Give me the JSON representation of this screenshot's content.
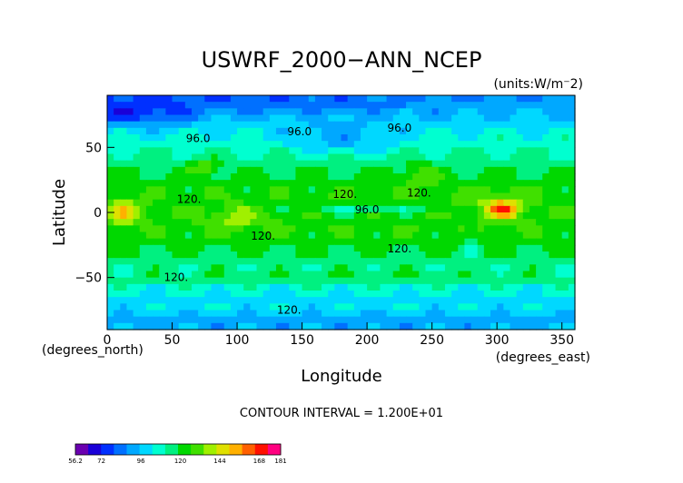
{
  "chart_data": {
    "type": "heatmap",
    "title": "USWRF_2000−ANN_NCEP",
    "units": "(units:W/m⁻2)",
    "xlabel": "Longitude",
    "ylabel": "Latitude",
    "x_units": "(degrees_east)",
    "y_units": "(degrees_north)",
    "xlim": [
      0,
      360
    ],
    "ylim": [
      -90,
      90
    ],
    "x_ticks": [
      0,
      50,
      100,
      150,
      200,
      250,
      300,
      350
    ],
    "y_ticks": [
      -50,
      0,
      50
    ],
    "contour_interval": "CONTOUR INTERVAL = 1.200E+01",
    "contour_labels": [
      {
        "text": "96.0",
        "lon": 148,
        "lat": 62
      },
      {
        "text": "96.0",
        "lon": 70,
        "lat": 57
      },
      {
        "text": "96.0",
        "lon": 225,
        "lat": 65
      },
      {
        "text": "96.0",
        "lon": 200,
        "lat": 2
      },
      {
        "text": "120.",
        "lon": 183,
        "lat": 14
      },
      {
        "text": "120.",
        "lon": 240,
        "lat": 15
      },
      {
        "text": "120.",
        "lon": 63,
        "lat": 10
      },
      {
        "text": "120.",
        "lon": 120,
        "lat": -18
      },
      {
        "text": "120.",
        "lon": 225,
        "lat": -28
      },
      {
        "text": "120.",
        "lon": 53,
        "lat": -50
      },
      {
        "text": "120.",
        "lon": 140,
        "lat": -75
      }
    ],
    "colorbar": {
      "tick_labels": [
        "56.2",
        "72",
        "96",
        "120",
        "144",
        "168",
        "181"
      ],
      "tick_values": [
        56.2,
        72,
        96,
        120,
        144,
        168,
        181
      ],
      "min": 56.2,
      "max": 181,
      "colors": [
        "#6a00b0",
        "#1a00d8",
        "#0030ff",
        "#0070ff",
        "#00a8ff",
        "#00d8ff",
        "#00ffd0",
        "#00f080",
        "#00d800",
        "#40e000",
        "#a0f000",
        "#e0e000",
        "#ffb000",
        "#ff6000",
        "#ff1000",
        "#ff0080"
      ]
    }
  }
}
